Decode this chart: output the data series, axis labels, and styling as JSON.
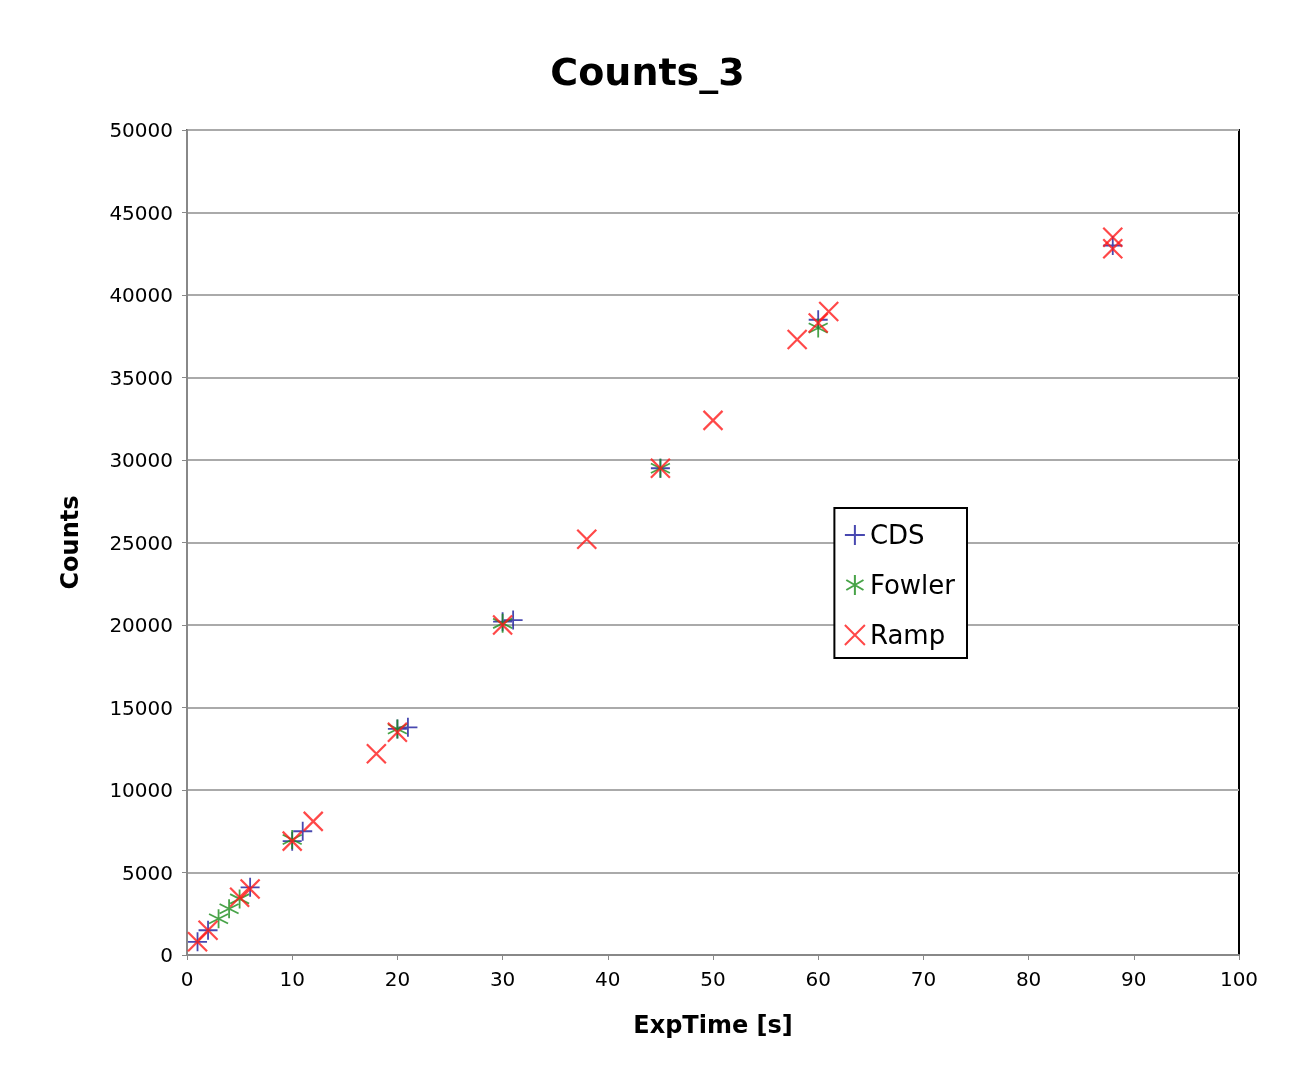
{
  "chart_data": {
    "type": "scatter",
    "title": "Counts_3",
    "xlabel": "ExpTime [s]",
    "ylabel": "Counts",
    "xlim": [
      0,
      100
    ],
    "xticks": [
      0,
      10,
      20,
      30,
      40,
      50,
      60,
      70,
      80,
      90,
      100
    ],
    "ylim": [
      0,
      50000
    ],
    "yticks": [
      0,
      5000,
      10000,
      15000,
      20000,
      25000,
      30000,
      35000,
      40000,
      45000,
      50000
    ],
    "grid": "y",
    "legend": "right",
    "series": [
      {
        "name": "CDS",
        "color": "#1a1a9c",
        "x": [
          1,
          2,
          6,
          10,
          11,
          20,
          21,
          30,
          31,
          45,
          60,
          88
        ],
        "values": [
          800,
          1500,
          4100,
          6900,
          7500,
          13700,
          13800,
          20200,
          20300,
          29500,
          38500,
          43000
        ]
      },
      {
        "name": "Fowler",
        "color": "#1a8c1a",
        "x": [
          3,
          4,
          5,
          10,
          20,
          30,
          45,
          60
        ],
        "values": [
          2200,
          2800,
          3400,
          7000,
          13700,
          20100,
          29500,
          38000
        ]
      },
      {
        "name": "Ramp",
        "color": "#ff1a1a",
        "marker": "cross",
        "x": [
          1,
          2,
          5,
          6,
          10,
          12,
          18,
          20,
          30,
          38,
          45,
          50,
          58,
          60,
          61,
          88,
          88
        ],
        "values": [
          800,
          1500,
          3500,
          4000,
          6900,
          8100,
          12200,
          13500,
          20000,
          25200,
          29500,
          32400,
          37300,
          38300,
          39000,
          43500,
          42800
        ]
      }
    ]
  }
}
